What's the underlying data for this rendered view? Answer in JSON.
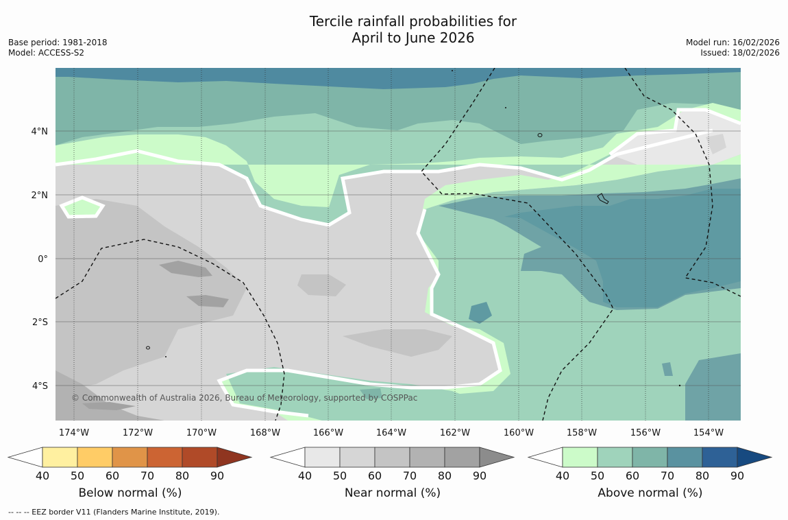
{
  "title_line1": "Tercile rainfall probabilities for",
  "title_line2": "April to June 2026",
  "base_period": "Base period: 1981-2018",
  "model": "Model: ACCESS-S2",
  "model_run": "Model run: 16/02/2026",
  "issued": "Issued: 18/02/2026",
  "copyright": "© Commonwealth of Australia 2026, Bureau of Meteorology, supported by COSPPac",
  "footer": "--  --  -- EEZ border V11 (Flanders Marine Institute, 2019).",
  "lon_labels": [
    "174°W",
    "172°W",
    "170°W",
    "168°W",
    "166°W",
    "164°W",
    "162°W",
    "160°W",
    "158°W",
    "156°W",
    "154°W"
  ],
  "lat_labels": [
    "4°N",
    "2°N",
    "0°",
    "2°S",
    "4°S"
  ],
  "colorbars": [
    {
      "label": "Below normal (%)",
      "ticks": [
        "40",
        "50",
        "60",
        "70",
        "80",
        "90"
      ],
      "colors": [
        "#ffffff",
        "#fff0a0",
        "#ffcc66",
        "#e09448",
        "#cc6433",
        "#b04a28",
        "#8f3520"
      ]
    },
    {
      "label": "Near normal (%)",
      "ticks": [
        "40",
        "50",
        "60",
        "70",
        "80",
        "90"
      ],
      "colors": [
        "#ffffff",
        "#e8e8e8",
        "#d6d6d6",
        "#c4c4c4",
        "#b2b2b2",
        "#a2a2a2",
        "#8c8c8c"
      ]
    },
    {
      "label": "Above normal (%)",
      "ticks": [
        "40",
        "50",
        "60",
        "70",
        "80",
        "90"
      ],
      "colors": [
        "#ffffff",
        "#ccfbc9",
        "#9fd3bb",
        "#7fb5a8",
        "#5a92a0",
        "#2e6196",
        "#174a80"
      ]
    }
  ]
}
